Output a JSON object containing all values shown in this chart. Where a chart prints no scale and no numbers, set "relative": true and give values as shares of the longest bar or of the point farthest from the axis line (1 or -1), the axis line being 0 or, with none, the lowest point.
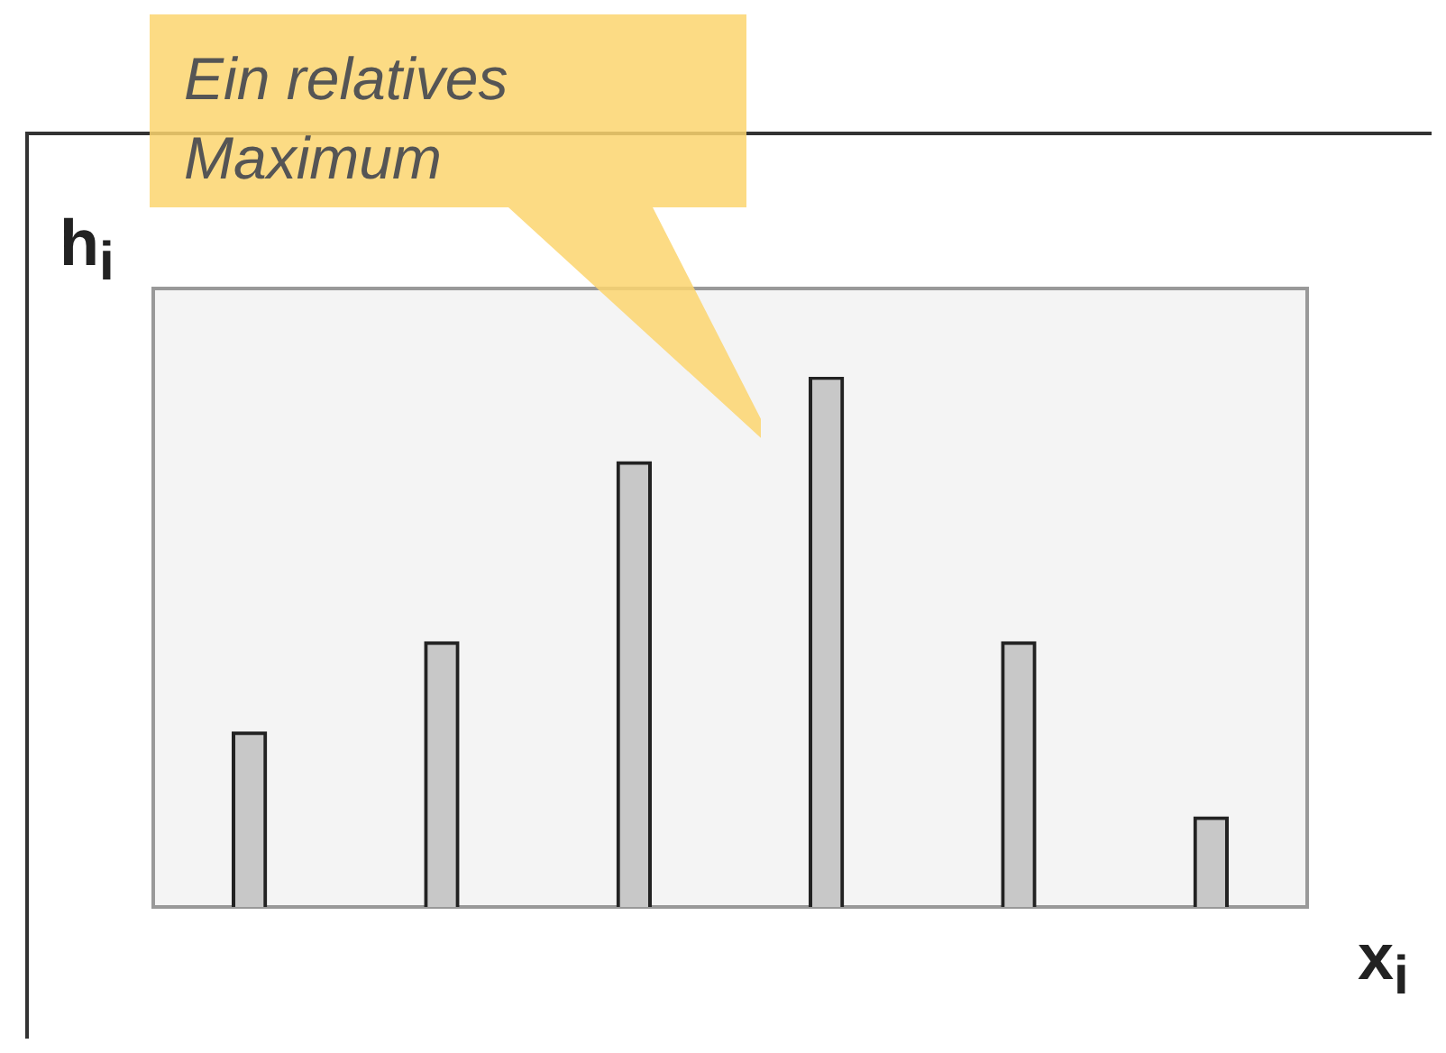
{
  "chart_data": {
    "type": "bar",
    "relative": true,
    "xlabel": "x$_{i}$",
    "ylabel": "h$_{i}$",
    "categories": [
      null,
      null,
      null,
      null,
      null,
      null
    ],
    "values": [
      0.33,
      0.5,
      0.84,
      1,
      0.5,
      0.17
    ],
    "color": "#c8c8c8",
    "annotations": [
      "Ein relatives Maximum"
    ]
  }
}
